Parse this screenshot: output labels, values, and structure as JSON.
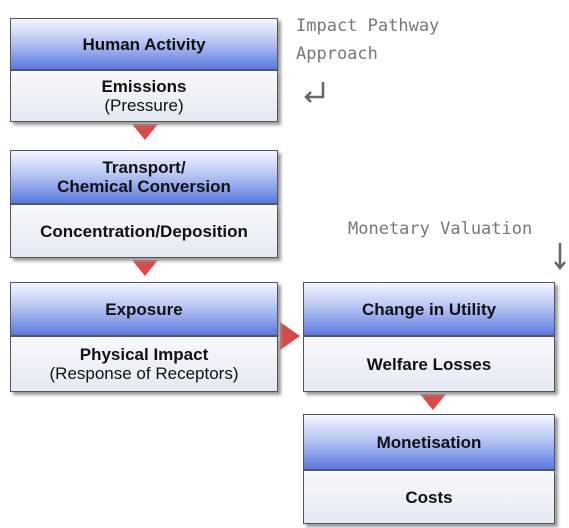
{
  "annotations": {
    "left": {
      "lines": [
        "Impact Pathway",
        "Approach"
      ]
    },
    "right": "Monetary Valuation"
  },
  "nodes": [
    {
      "label": "Human Activity"
    },
    {
      "label": "Emissions",
      "sublabel": "(Pressure)"
    },
    {
      "lines": [
        "Transport/",
        "Chemical Conversion"
      ]
    },
    {
      "label": "Concentration/Deposition"
    },
    {
      "label": "Exposure"
    },
    {
      "label": "Physical Impact",
      "sublabel": "(Response of Receptors)"
    },
    {
      "label": "Change in Utility"
    },
    {
      "label": "Welfare Losses"
    },
    {
      "label": "Monetisation"
    },
    {
      "label": "Costs"
    }
  ]
}
